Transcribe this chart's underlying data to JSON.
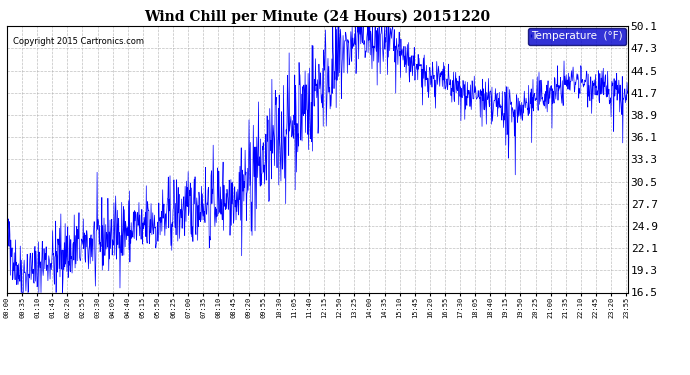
{
  "title": "Wind Chill per Minute (24 Hours) 20151220",
  "copyright_text": "Copyright 2015 Cartronics.com",
  "legend_label": "Temperature  (°F)",
  "line_color": "#0000FF",
  "background_color": "#ffffff",
  "yticks": [
    16.5,
    19.3,
    22.1,
    24.9,
    27.7,
    30.5,
    33.3,
    36.1,
    38.9,
    41.7,
    44.5,
    47.3,
    50.1
  ],
  "ylim": [
    16.5,
    50.1
  ],
  "total_minutes": 1440,
  "x_tick_interval": 35,
  "grid_color": "#b0b0b0",
  "legend_bg": "#0000cc",
  "legend_text_color": "#ffffff",
  "title_fontsize": 10,
  "yticklabel_fontsize": 8,
  "xticklabel_fontsize": 5,
  "copyright_fontsize": 6,
  "legend_fontsize": 7.5
}
